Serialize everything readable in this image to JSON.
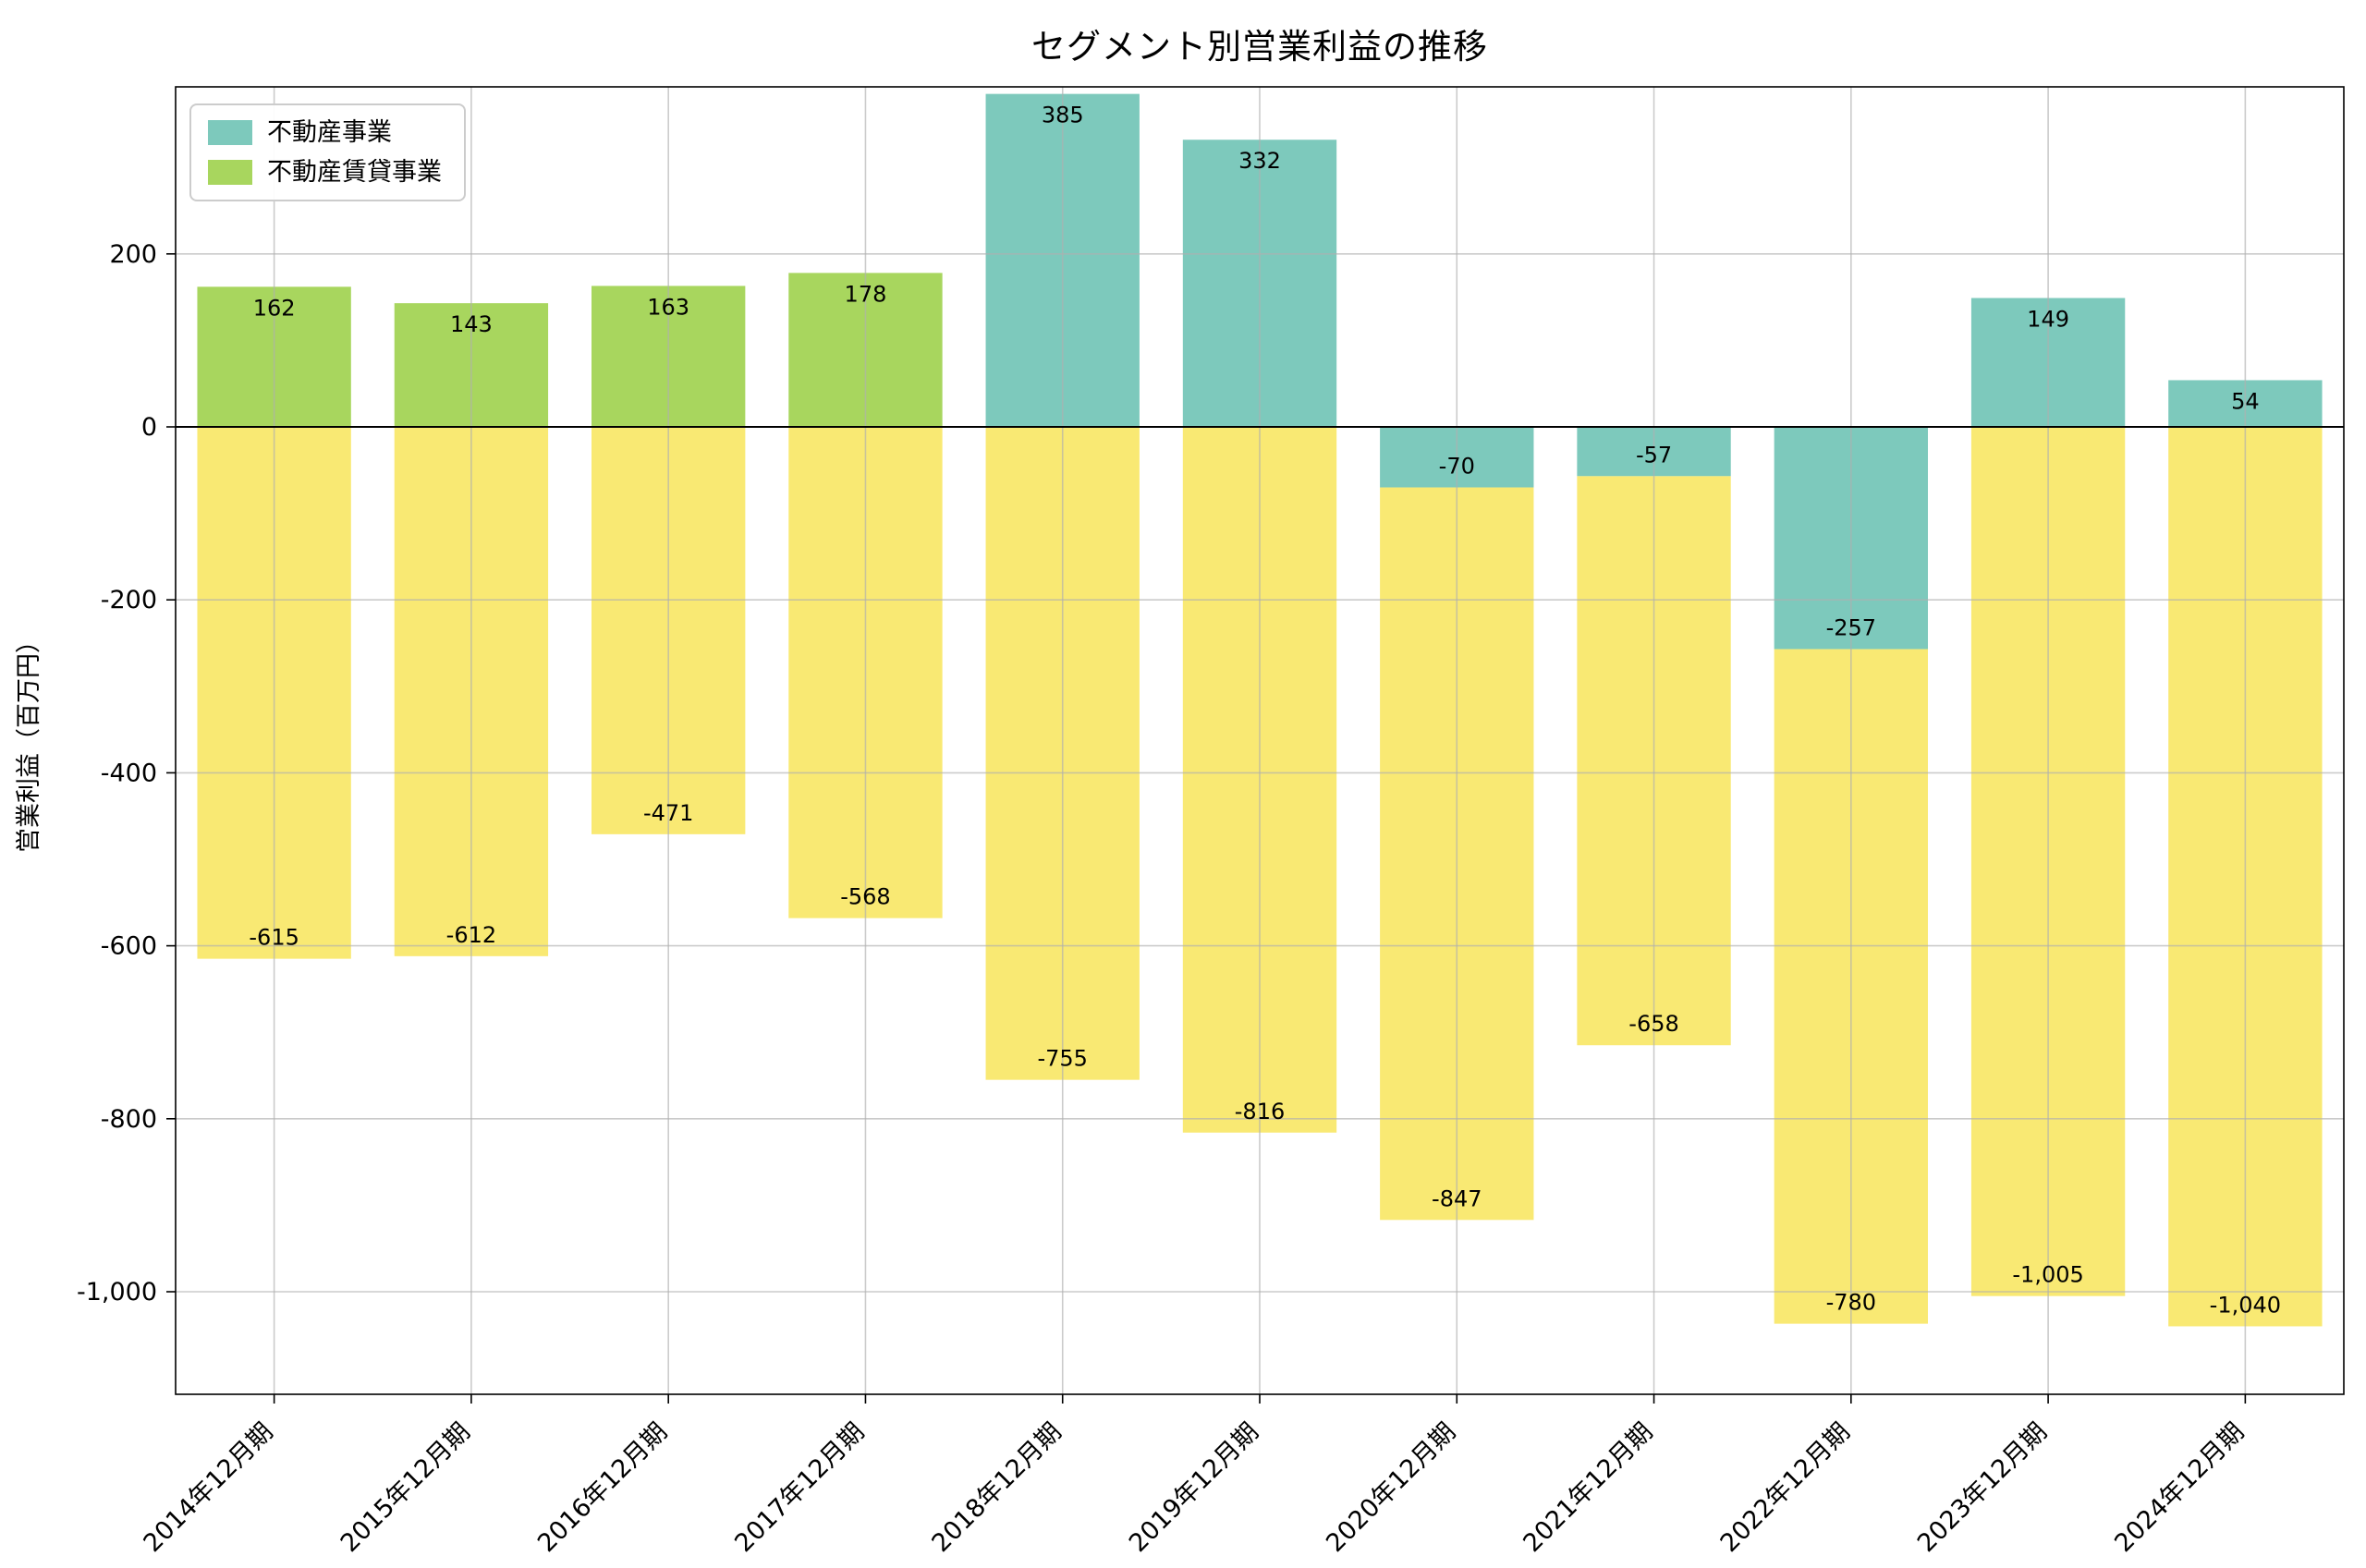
{
  "chart_data": {
    "type": "bar",
    "stacked": true,
    "title": "セグメント別営業利益の推移",
    "ylabel": "営業利益（百万円）",
    "categories": [
      "2014年12月期",
      "2015年12月期",
      "2016年12月期",
      "2017年12月期",
      "2018年12月期",
      "2019年12月期",
      "2020年12月期",
      "2021年12月期",
      "2022年12月期",
      "2023年12月期",
      "2024年12月期"
    ],
    "series": [
      {
        "name": "不動産事業",
        "color": "#7dc9bc",
        "in_legend": true,
        "values": [
          null,
          null,
          null,
          null,
          385,
          332,
          -70,
          -57,
          -257,
          149,
          54
        ]
      },
      {
        "name": "不動産賃貸事業",
        "color": "#a8d65e",
        "in_legend": true,
        "values": [
          162,
          143,
          163,
          178,
          null,
          null,
          null,
          null,
          null,
          null,
          null
        ]
      },
      {
        "name": "",
        "color": "#f9e973",
        "in_legend": false,
        "values": [
          -615,
          -612,
          -471,
          -568,
          -755,
          -816,
          -847,
          -658,
          -780,
          -1005,
          -1040
        ]
      }
    ],
    "yticks": [
      200,
      0,
      -200,
      -400,
      -600,
      -800,
      -1000
    ],
    "ylim": [
      -1119,
      393
    ],
    "grid": true,
    "legend_position": "upper left"
  }
}
